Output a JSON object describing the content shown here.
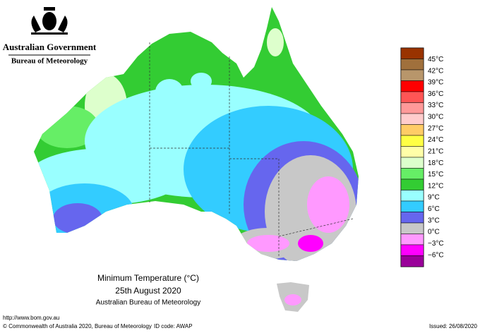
{
  "header": {
    "government": "Australian Government",
    "agency": "Bureau of Meteorology"
  },
  "legend": {
    "colors": [
      "#993300",
      "#a0703c",
      "#b8966b",
      "#ff0000",
      "#ff5555",
      "#ff9999",
      "#ffcccc",
      "#ffcc66",
      "#ffff44",
      "#ffffa8",
      "#ddffcc",
      "#66ee66",
      "#33cc33",
      "#99ffff",
      "#33ccff",
      "#6666ee",
      "#c8c8c8",
      "#ff99ff",
      "#ff00ff",
      "#990099"
    ],
    "labels": [
      "45°C",
      "42°C",
      "39°C",
      "36°C",
      "33°C",
      "30°C",
      "27°C",
      "24°C",
      "21°C",
      "18°C",
      "15°C",
      "12°C",
      "9°C",
      "6°C",
      "3°C",
      "0°C",
      "−3°C",
      "−6°C"
    ]
  },
  "caption": {
    "title": "Minimum Temperature (°C)",
    "date": "25th August 2020",
    "source": "Australian Bureau of Meteorology"
  },
  "footer": {
    "url": "http://www.bom.gov.au",
    "copyright": "© Commonwealth of Australia 2020, Bureau of Meteorology",
    "id_code": "ID code: AWAP",
    "issued": "Issued: 26/08/2020"
  }
}
